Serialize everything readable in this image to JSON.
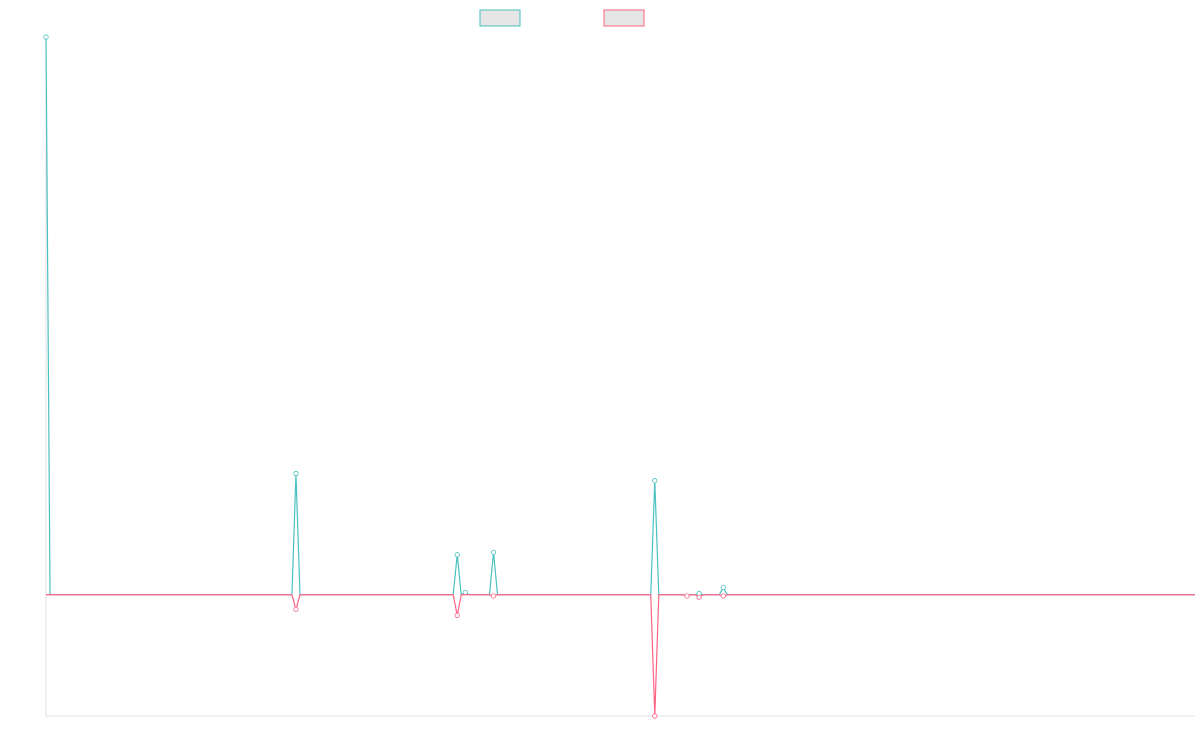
{
  "chart_data": {
    "type": "line",
    "title": "",
    "xlabel": "",
    "ylabel": "",
    "grid": false,
    "legend_position": "top-center",
    "x": [
      0,
      1,
      2,
      3,
      4,
      5,
      6,
      7,
      8,
      9,
      10,
      11,
      12,
      13,
      14,
      15,
      16,
      17,
      18,
      19,
      20,
      21,
      22,
      23,
      24,
      25,
      26,
      27,
      28,
      29,
      30,
      31,
      32,
      33,
      34,
      35,
      36,
      37,
      38,
      39,
      40,
      41,
      42,
      43,
      44,
      45,
      46,
      47,
      48,
      49,
      50,
      51,
      52,
      53,
      54,
      55,
      56,
      57,
      58,
      59,
      60,
      61,
      62,
      63,
      64,
      65,
      66,
      67,
      68,
      69,
      70,
      71,
      72,
      73,
      74,
      75,
      76,
      77,
      78,
      79,
      80,
      81,
      82,
      83,
      84,
      85,
      86,
      87,
      88,
      89,
      90,
      91,
      92,
      93,
      94,
      95,
      96,
      97,
      98,
      99,
      100,
      101,
      102,
      103,
      104,
      105,
      106,
      107,
      108,
      109,
      110,
      111,
      112,
      113,
      114,
      115,
      116,
      117,
      118,
      119,
      120,
      121,
      122,
      123,
      124,
      125,
      126,
      127,
      128,
      129,
      130,
      131,
      132,
      133,
      134,
      135,
      136,
      137,
      138,
      139,
      140,
      141,
      142,
      143,
      144,
      145,
      146,
      147,
      148,
      149,
      150,
      151,
      152,
      153,
      154,
      155,
      156,
      157,
      158,
      159,
      160,
      161,
      162,
      163,
      164,
      165,
      166,
      167,
      168,
      169,
      170,
      171,
      172,
      173,
      174,
      175,
      176,
      177,
      178,
      179,
      180,
      181,
      182,
      183,
      184,
      185,
      186,
      187,
      188,
      189,
      190,
      191,
      192,
      193,
      194,
      195,
      196,
      197,
      198,
      199,
      200,
      201,
      202,
      203,
      204,
      205,
      206,
      207,
      208,
      209,
      210,
      211,
      212,
      213,
      214,
      215,
      216,
      217,
      218,
      219,
      220,
      221,
      222,
      223,
      224,
      225,
      226,
      227,
      228,
      229,
      230,
      231,
      232,
      233,
      234,
      235,
      236,
      237,
      238,
      239,
      240,
      241,
      242,
      243,
      244,
      245,
      246,
      247,
      248,
      249,
      250,
      251,
      252,
      253,
      254,
      255,
      256,
      257,
      258,
      259,
      260,
      261,
      262,
      263,
      264,
      265,
      266,
      267,
      268,
      269,
      270,
      271,
      272,
      273,
      274,
      275,
      276,
      277,
      278,
      279,
      280,
      281,
      282,
      283,
      284,
      285
    ],
    "ylim": [
      -1.0,
      4.6
    ],
    "xlim": [
      0,
      285
    ],
    "series": [
      {
        "color": "#4bc0c0",
        "fill": "#e6e6e6",
        "spikes": [
          {
            "x": 0,
            "y": 4.6
          },
          {
            "x": 62,
            "y": 1.0
          },
          {
            "x": 102,
            "y": 0.33
          },
          {
            "x": 104,
            "y": 0.02
          },
          {
            "x": 111,
            "y": 0.35
          },
          {
            "x": 151,
            "y": 0.94
          },
          {
            "x": 162,
            "y": 0.01
          },
          {
            "x": 168,
            "y": 0.06
          }
        ]
      },
      {
        "color": "#ff6384",
        "fill": "#e6e6e6",
        "spikes": [
          {
            "x": 62,
            "y": -0.12
          },
          {
            "x": 102,
            "y": -0.17
          },
          {
            "x": 111,
            "y": -0.01
          },
          {
            "x": 151,
            "y": -1.0
          },
          {
            "x": 159,
            "y": -0.01
          },
          {
            "x": 162,
            "y": -0.02
          },
          {
            "x": 168,
            "y": -0.01
          }
        ]
      }
    ]
  }
}
